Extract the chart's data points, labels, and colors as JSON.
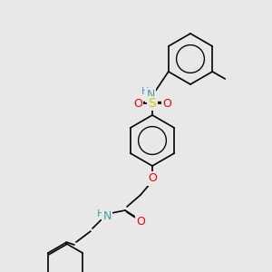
{
  "bg_color": "#e8e8e8",
  "bond_color": "#000000",
  "atom_colors": {
    "N": "#4a9a9a",
    "O": "#ff0000",
    "S": "#cccc00",
    "C": "#000000"
  },
  "font_size_atom": 9,
  "font_size_label": 8,
  "line_width": 1.2
}
